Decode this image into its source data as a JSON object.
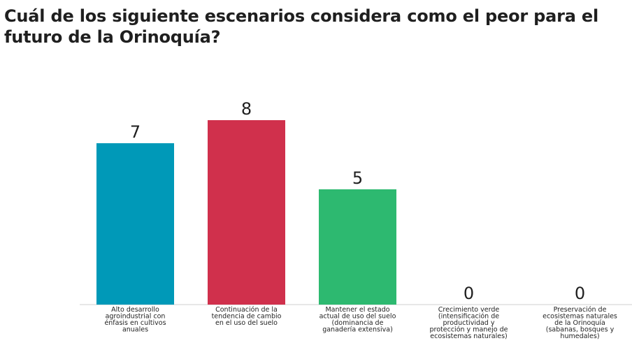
{
  "chart_data": {
    "type": "bar",
    "title": "Cuál de los siguiente escenarios considera como el peor para el futuro de la Orinoquía?",
    "categories": [
      [
        "Alto desarrollo",
        "agroindustrial con",
        "énfasis en cultivos",
        "anuales"
      ],
      [
        "Continuación de la",
        "tendencia de cambio",
        "en el uso del suelo"
      ],
      [
        "Mantener el estado",
        "actual de uso del suelo",
        "(dominancia de",
        "ganadería extensiva)"
      ],
      [
        "Crecimiento verde",
        "(intensificación de",
        "productividad y",
        "protección y manejo de",
        "ecosistemas naturales)"
      ],
      [
        "Preservación de",
        "ecosistemas naturales",
        "de la Orinoquía",
        "(sabanas, bosques y",
        "humedales)"
      ]
    ],
    "values": [
      7,
      8,
      5,
      0,
      0
    ],
    "colors": [
      "#0099b8",
      "#d0304c",
      "#2db970",
      "#9aa0a6",
      "#9aa0a6"
    ],
    "ylim": [
      0,
      8
    ],
    "grid": false
  }
}
